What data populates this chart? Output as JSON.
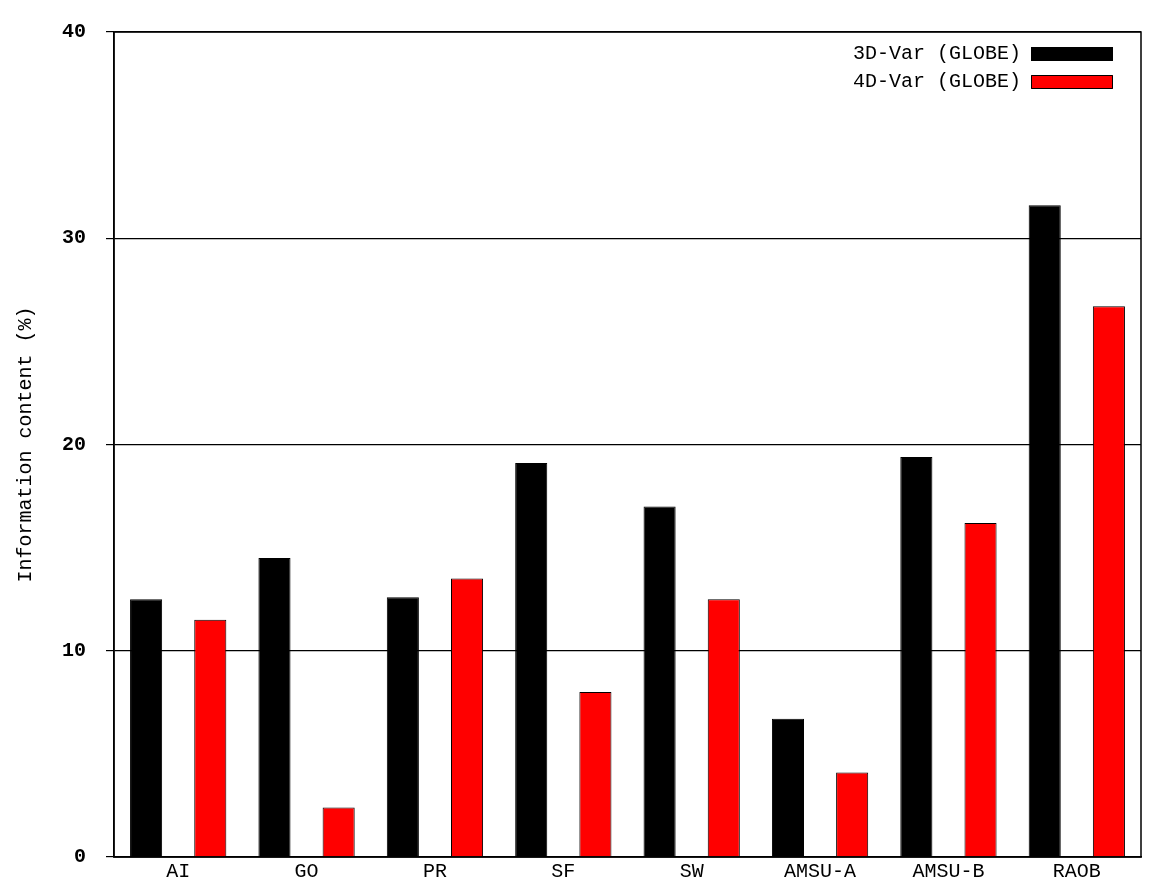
{
  "chart_data": {
    "type": "bar",
    "ylabel": "Information content (%)",
    "categories": [
      "AI",
      "GO",
      "PR",
      "SF",
      "SW",
      "AMSU-A",
      "AMSU-B",
      "RAOB"
    ],
    "series": [
      {
        "name": "3D-Var (GLOBE)",
        "color": "#000000",
        "values": [
          12.5,
          14.5,
          12.6,
          19.1,
          17.0,
          6.7,
          19.4,
          31.6
        ]
      },
      {
        "name": "4D-Var (GLOBE)",
        "color": "#ff0000",
        "values": [
          11.5,
          2.4,
          13.5,
          8.0,
          12.5,
          4.1,
          16.2,
          26.7
        ]
      }
    ],
    "ylim": [
      0,
      40
    ],
    "yticks": [
      0,
      10,
      20,
      30,
      40
    ],
    "grid": "y",
    "legend": "top right"
  }
}
